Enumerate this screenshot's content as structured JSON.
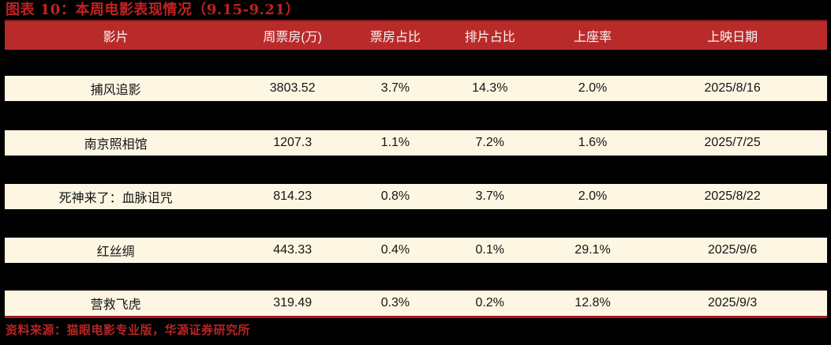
{
  "chart_data": {
    "type": "table",
    "title": "图表 10：本周电影表现情况（9.15-9.21）",
    "columns": [
      "影片",
      "周票房(万)",
      "票房占比",
      "排片占比",
      "上座率",
      "上映日期"
    ],
    "rows": [
      [
        "捕风追影",
        "3803.52",
        "3.7%",
        "14.3%",
        "2.0%",
        "2025/8/16"
      ],
      [
        "南京照相馆",
        "1207.3",
        "1.1%",
        "7.2%",
        "1.6%",
        "2025/7/25"
      ],
      [
        "死神来了：血脉诅咒",
        "814.23",
        "0.8%",
        "3.7%",
        "2.0%",
        "2025/8/22"
      ],
      [
        "红丝绸",
        "443.33",
        "0.4%",
        "0.1%",
        "29.1%",
        "2025/9/6"
      ],
      [
        "营救飞虎",
        "319.49",
        "0.3%",
        "0.2%",
        "12.8%",
        "2025/9/3"
      ]
    ],
    "source": "资料来源：猫眼电影专业版，华源证券研究所",
    "layout": {
      "legend": "none",
      "grid": "off",
      "striped_rows_on_dark_background": true
    }
  },
  "colors": {
    "background": "#000000",
    "header_bg": "#B92B2B",
    "header_text": "#FBF4F4",
    "row_bg": "#FDF6E3",
    "row_text": "#141414",
    "accent_red": "#C32121",
    "bottom_rule": "#A61B1B"
  }
}
